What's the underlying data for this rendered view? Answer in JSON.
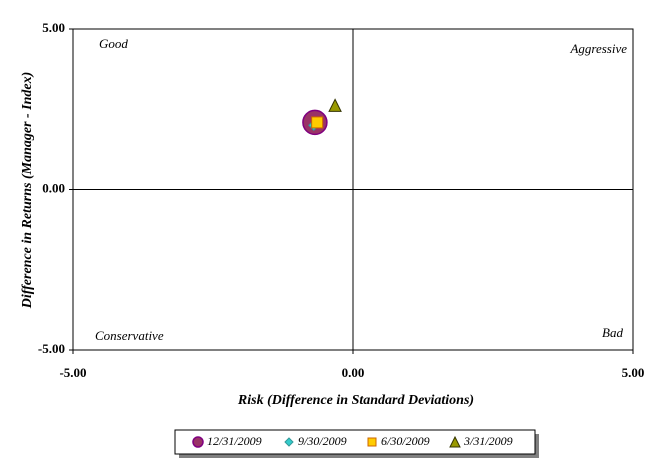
{
  "chart_data": {
    "type": "scatter",
    "x_label": "Risk (Difference in Standard Deviations)",
    "y_label": "Difference in Returns (Manager - Index)",
    "xlim": [
      -5,
      5
    ],
    "ylim": [
      -5,
      5
    ],
    "xticks": [
      {
        "value": -5,
        "label": "-5.00"
      },
      {
        "value": 0,
        "label": "0.00"
      },
      {
        "value": 5,
        "label": "5.00"
      }
    ],
    "yticks": [
      {
        "value": -5,
        "label": "-5.00"
      },
      {
        "value": 0,
        "label": "0.00"
      },
      {
        "value": 5,
        "label": "5.00"
      }
    ],
    "annotations": [
      "Good",
      "Aggressive",
      "Conservative",
      "Bad"
    ],
    "legend": "bottom",
    "series": [
      {
        "name": "12/31/2009",
        "color": "#993366",
        "marker": "circle",
        "x": [
          -0.68
        ],
        "values": [
          2.09
        ]
      },
      {
        "name": "9/30/2009",
        "color": "#33cccc",
        "marker": "diamond",
        "x": [
          -0.7
        ],
        "values": [
          2.0
        ]
      },
      {
        "name": "6/30/2009",
        "color": "#ffcc00",
        "marker": "square",
        "x": [
          -0.64
        ],
        "values": [
          2.09
        ]
      },
      {
        "name": "3/31/2009",
        "color": "#999900",
        "marker": "triangle",
        "x": [
          -0.32
        ],
        "values": [
          2.62
        ]
      }
    ]
  }
}
